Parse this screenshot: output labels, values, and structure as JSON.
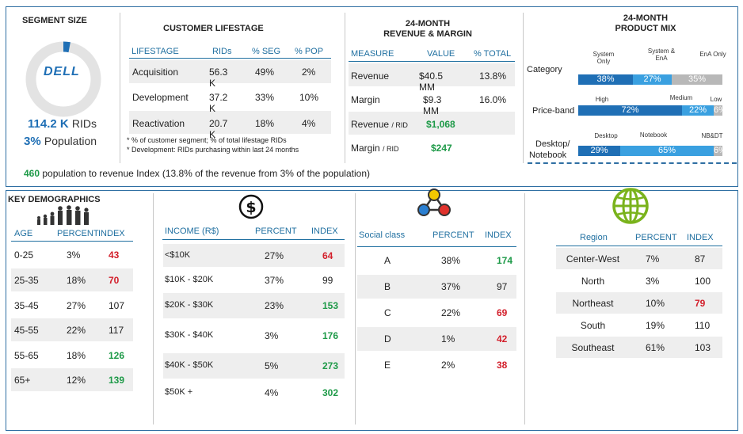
{
  "segment": {
    "title": "SEGMENT SIZE",
    "brand": "DELL",
    "rids": "114.2 K",
    "rids_unit": "RIDs",
    "population": "3%",
    "population_unit": "Population"
  },
  "lifestage": {
    "title": "CUSTOMER LIFESTAGE",
    "headers": [
      "LIFESTAGE",
      "RIDs",
      "% SEG",
      "% POP"
    ],
    "rows": [
      [
        "Acquisition",
        "56.3 K",
        "49%",
        "2%"
      ],
      [
        "Development",
        "37.2 K",
        "33%",
        "10%"
      ],
      [
        "Reactivation",
        "20.7 K",
        "18%",
        "4%"
      ]
    ],
    "note1": "* % of customer segment; % of total lifestage RIDs",
    "note2": "* Development: RIDs purchasing within last 24 months"
  },
  "revenue": {
    "title1": "24-MONTH",
    "title2": "REVENUE & MARGIN",
    "headers": [
      "MEASURE",
      "VALUE",
      "% TOTAL"
    ],
    "rows": [
      [
        "Revenue",
        "$40.5 MM",
        "13.8%"
      ],
      [
        "Margin",
        "$9.3 MM",
        "16.0%"
      ]
    ],
    "rev_rid_label": "Revenue",
    "rev_rid_suffix": "/ RID",
    "rev_rid_value": "$1,068",
    "mar_rid_label": "Margin",
    "mar_rid_suffix": "/ RID",
    "mar_rid_value": "$247"
  },
  "product_mix": {
    "title1": "24-MONTH",
    "title2": "PRODUCT MIX",
    "category": {
      "label": "Category",
      "legend": [
        "System Only",
        "System & EnA",
        "EnA Only"
      ],
      "values": [
        38,
        27,
        35
      ],
      "labels": [
        "38%",
        "27%",
        "35%"
      ]
    },
    "price": {
      "label": "Price-band",
      "legend": [
        "High",
        "Medium",
        "Low"
      ],
      "values": [
        72,
        22,
        6
      ],
      "labels": [
        "72%",
        "22%",
        "6%"
      ]
    },
    "desktop": {
      "label1": "Desktop/",
      "label2": "Notebook",
      "legend": [
        "Desktop",
        "Notebook",
        "NB&DT"
      ],
      "values": [
        29,
        65,
        6
      ],
      "labels": [
        "29%",
        "65%",
        "6%"
      ]
    }
  },
  "index_note": {
    "value": "460",
    "text": "population to revenue Index (13.8% of the revenue from 3% of the population)"
  },
  "demographics": {
    "title": "KEY DEMOGRAPHICS",
    "age": {
      "headers": [
        "AGE",
        "PERCENT",
        "INDEX"
      ],
      "rows": [
        [
          "0-25",
          "3%",
          "43"
        ],
        [
          "25-35",
          "18%",
          "70"
        ],
        [
          "35-45",
          "27%",
          "107"
        ],
        [
          "45-55",
          "22%",
          "117"
        ],
        [
          "55-65",
          "18%",
          "126"
        ],
        [
          "65+",
          "12%",
          "139"
        ]
      ]
    },
    "income": {
      "headers": [
        "INCOME (R$)",
        "PERCENT",
        "INDEX"
      ],
      "rows": [
        [
          "<$10K",
          "27%",
          "64"
        ],
        [
          "$10K - $20K",
          "37%",
          "99"
        ],
        [
          "$20K - $30K",
          "23%",
          "153"
        ],
        [
          "$30K - $40K",
          "3%",
          "176"
        ],
        [
          "$40K - $50K",
          "5%",
          "273"
        ],
        [
          "$50K +",
          "4%",
          "302"
        ]
      ]
    },
    "social": {
      "headers": [
        "Social class",
        "PERCENT",
        "INDEX"
      ],
      "rows": [
        [
          "A",
          "38%",
          "174"
        ],
        [
          "B",
          "37%",
          "97"
        ],
        [
          "C",
          "22%",
          "69"
        ],
        [
          "D",
          "1%",
          "42"
        ],
        [
          "E",
          "2%",
          "38"
        ]
      ]
    },
    "region": {
      "headers": [
        "Region",
        "PERCENT",
        "INDEX"
      ],
      "rows": [
        [
          "Center-West",
          "7%",
          "87"
        ],
        [
          "North",
          "3%",
          "100"
        ],
        [
          "Northeast",
          "10%",
          "79"
        ],
        [
          "South",
          "19%",
          "110"
        ],
        [
          "Southeast",
          "61%",
          "103"
        ]
      ]
    },
    "colors": {
      "green": "#1e9a48",
      "red": "#d3202c",
      "accent": "#1f6fa0"
    }
  }
}
